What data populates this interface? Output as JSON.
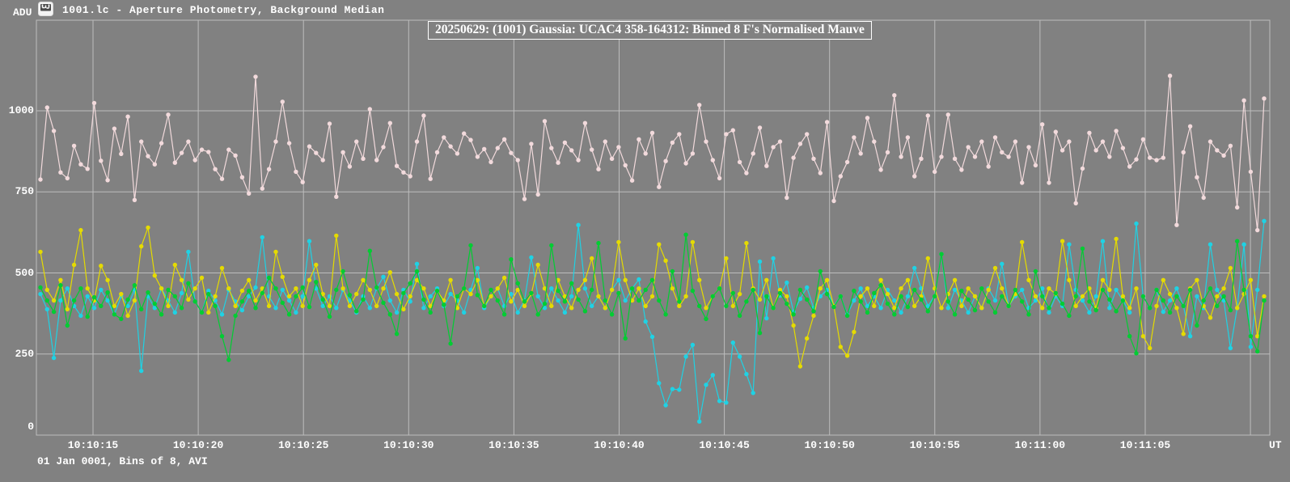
{
  "window": {
    "title": "1001.lc - Aperture Photometry, Background Median",
    "icon": "app-icon"
  },
  "footer": {
    "text": "01 Jan 0001, Bins of 8, AVI"
  },
  "colors": {
    "background": "#818181",
    "grid": "#BDBDBD",
    "text": "#FFFFFF",
    "mauve": "#F2DADC",
    "cyan": "#1FD2E4",
    "yellow": "#E5DB00",
    "green": "#00CD32"
  },
  "chart_data": {
    "type": "line",
    "title": "20250629: (1001) Gaussia: UCAC4 358-164312: Binned 8 F's Normalised Mauve",
    "ylabel": "ADU",
    "xlabel": "UT",
    "grid": true,
    "legend": "none",
    "ylim": [
      0,
      1280
    ],
    "y_ticks": [
      1000,
      750,
      500,
      250,
      0
    ],
    "x_tick_labels": [
      "10:10:15",
      "10:10:20",
      "10:10:25",
      "10:10:30",
      "10:10:35",
      "10:10:40",
      "10:10:45",
      "10:10:50",
      "10:10:55",
      "10:11:00",
      "10:11:05"
    ],
    "x_tick_interval_seconds": 5,
    "marker": "circle",
    "series": [
      {
        "name": "mauve-normalised-series",
        "color": "#F2DADC",
        "values": [
          788,
          1010,
          938,
          810,
          792,
          892,
          835,
          821,
          1024,
          846,
          786,
          945,
          867,
          982,
          725,
          905,
          860,
          835,
          900,
          988,
          840,
          870,
          905,
          848,
          880,
          873,
          820,
          790,
          880,
          862,
          795,
          745,
          1105,
          760,
          820,
          905,
          1028,
          900,
          812,
          780,
          890,
          870,
          848,
          960,
          735,
          872,
          828,
          905,
          852,
          1005,
          848,
          888,
          962,
          830,
          810,
          798,
          905,
          985,
          790,
          872,
          918,
          890,
          868,
          930,
          910,
          858,
          882,
          842,
          885,
          912,
          870,
          848,
          728,
          898,
          742,
          968,
          885,
          840,
          902,
          878,
          848,
          962,
          880,
          820,
          905,
          852,
          888,
          832,
          785,
          912,
          868,
          932,
          765,
          845,
          902,
          928,
          838,
          868,
          1018,
          905,
          848,
          792,
          928,
          940,
          842,
          808,
          868,
          948,
          830,
          888,
          905,
          732,
          855,
          898,
          928,
          852,
          808,
          965,
          722,
          798,
          842,
          918,
          868,
          978,
          905,
          818,
          872,
          1048,
          858,
          918,
          798,
          852,
          985,
          812,
          858,
          988,
          852,
          818,
          888,
          858,
          905,
          828,
          918,
          872,
          858,
          905,
          778,
          888,
          832,
          958,
          778,
          935,
          878,
          905,
          715,
          822,
          932,
          878,
          905,
          858,
          938,
          885,
          828,
          850,
          912,
          855,
          848,
          855,
          1108,
          648,
          872,
          952,
          795,
          732,
          905,
          878,
          862,
          892,
          702,
          1032,
          812,
          632,
          1038
        ]
      },
      {
        "name": "cyan-series",
        "color": "#1FD2E4",
        "values": [
          435,
          388,
          238,
          415,
          452,
          398,
          368,
          428,
          392,
          448,
          415,
          372,
          428,
          398,
          448,
          198,
          428,
          392,
          452,
          415,
          378,
          438,
          565,
          412,
          378,
          445,
          415,
          372,
          448,
          412,
          385,
          428,
          455,
          610,
          428,
          392,
          448,
          415,
          378,
          428,
          598,
          452,
          398,
          428,
          392,
          448,
          415,
          378,
          428,
          392,
          452,
          488,
          415,
          378,
          448,
          412,
          528,
          392,
          428,
          452,
          398,
          435,
          415,
          378,
          448,
          515,
          392,
          428,
          452,
          398,
          435,
          378,
          415,
          548,
          428,
          392,
          452,
          415,
          378,
          428,
          648,
          452,
          398,
          428,
          392,
          448,
          478,
          415,
          452,
          480,
          350,
          303,
          160,
          92,
          142,
          140,
          242,
          278,
          42,
          155,
          185,
          105,
          100,
          285,
          242,
          188,
          130,
          535,
          360,
          545,
          430,
          470,
          380,
          420,
          455,
          392,
          428,
          448,
          398,
          428,
          372,
          415,
          452,
          398,
          428,
          392,
          448,
          415,
          378,
          428,
          515,
          452,
          398,
          428,
          558,
          392,
          448,
          415,
          378,
          428,
          392,
          452,
          415,
          528,
          398,
          428,
          448,
          392,
          415,
          452,
          378,
          428,
          398,
          588,
          448,
          415,
          378,
          428,
          598,
          392,
          448,
          415,
          378,
          652,
          428,
          392,
          448,
          380,
          415,
          452,
          398,
          305,
          428,
          392,
          588,
          448,
          415,
          268,
          392,
          588,
          272,
          448,
          660
        ]
      },
      {
        "name": "yellow-series",
        "color": "#E5DB00",
        "values": [
          565,
          448,
          415,
          478,
          388,
          525,
          632,
          452,
          415,
          522,
          478,
          398,
          435,
          368,
          415,
          582,
          640,
          492,
          452,
          398,
          525,
          478,
          418,
          452,
          485,
          378,
          428,
          515,
          452,
          398,
          445,
          478,
          415,
          452,
          398,
          565,
          488,
          428,
          452,
          398,
          478,
          525,
          435,
          398,
          615,
          452,
          398,
          435,
          478,
          448,
          398,
          452,
          502,
          435,
          388,
          428,
          478,
          452,
          398,
          445,
          415,
          478,
          392,
          452,
          435,
          478,
          398,
          428,
          452,
          485,
          412,
          448,
          398,
          435,
          525,
          452,
          398,
          478,
          428,
          392,
          448,
          478,
          545,
          428,
          392,
          448,
          595,
          478,
          415,
          452,
          398,
          428,
          588,
          538,
          452,
          398,
          428,
          595,
          478,
          392,
          428,
          452,
          545,
          398,
          435,
          592,
          452,
          418,
          478,
          392,
          448,
          428,
          338,
          212,
          298,
          368,
          452,
          478,
          398,
          272,
          245,
          318,
          428,
          452,
          398,
          478,
          435,
          392,
          452,
          478,
          398,
          428,
          545,
          452,
          392,
          435,
          478,
          398,
          452,
          428,
          392,
          448,
          515,
          452,
          398,
          435,
          595,
          478,
          428,
          392,
          452,
          435,
          598,
          478,
          398,
          428,
          452,
          392,
          478,
          448,
          605,
          428,
          392,
          452,
          305,
          268,
          398,
          478,
          435,
          392,
          312,
          452,
          478,
          398,
          362,
          428,
          452,
          515,
          392,
          435,
          478,
          305,
          428
        ]
      },
      {
        "name": "green-series",
        "color": "#00CD32",
        "values": [
          455,
          415,
          380,
          462,
          338,
          415,
          452,
          365,
          425,
          398,
          440,
          372,
          358,
          418,
          462,
          388,
          440,
          405,
          372,
          448,
          428,
          392,
          468,
          412,
          378,
          435,
          398,
          305,
          232,
          368,
          412,
          445,
          392,
          438,
          485,
          452,
          408,
          372,
          428,
          455,
          395,
          472,
          418,
          365,
          448,
          505,
          432,
          382,
          418,
          568,
          455,
          408,
          372,
          312,
          438,
          468,
          505,
          418,
          378,
          445,
          402,
          282,
          428,
          452,
          585,
          432,
          398,
          448,
          415,
          372,
          542,
          468,
          412,
          438,
          372,
          405,
          585,
          445,
          412,
          468,
          418,
          382,
          448,
          592,
          415,
          372,
          438,
          298,
          452,
          415,
          448,
          478,
          415,
          372,
          505,
          412,
          618,
          445,
          398,
          358,
          428,
          452,
          398,
          438,
          368,
          412,
          448,
          315,
          428,
          392,
          438,
          405,
          372,
          448,
          418,
          382,
          505,
          435,
          395,
          428,
          368,
          445,
          412,
          378,
          438,
          462,
          405,
          372,
          428,
          395,
          448,
          418,
          382,
          428,
          558,
          412,
          372,
          445,
          418,
          385,
          452,
          412,
          378,
          428,
          398,
          448,
          412,
          372,
          505,
          428,
          392,
          438,
          405,
          368,
          428,
          575,
          412,
          385,
          448,
          418,
          382,
          415,
          305,
          252,
          428,
          392,
          448,
          415,
          378,
          428,
          398,
          448,
          338,
          415,
          452,
          398,
          428,
          385,
          598,
          448,
          305,
          258,
          415
        ]
      }
    ]
  }
}
